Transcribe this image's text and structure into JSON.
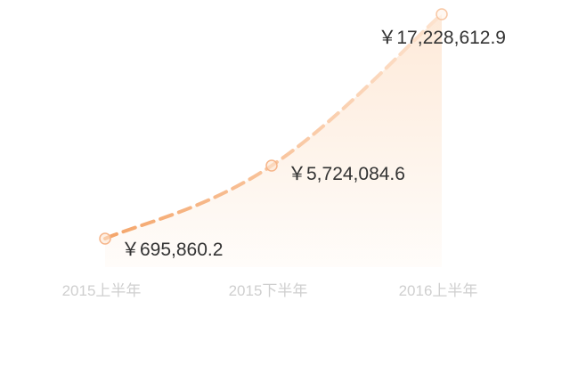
{
  "chart_data": {
    "type": "area",
    "categories": [
      "2015上半年",
      "2015下半年",
      "2016上半年"
    ],
    "values": [
      695860.2,
      5724084.6,
      17228612.9
    ],
    "data_labels": [
      "￥695,860.2",
      "￥5,724,084.6",
      "￥17,228,612.9"
    ],
    "grid": false,
    "legend": "none",
    "line_style": "dashed",
    "colors": {
      "line_start": "#f4a56a",
      "line_end": "#fde3cf",
      "area": "#fde6d2",
      "marker": "#f6b58a",
      "label": "#333333",
      "tick": "#cfcfcf"
    }
  }
}
